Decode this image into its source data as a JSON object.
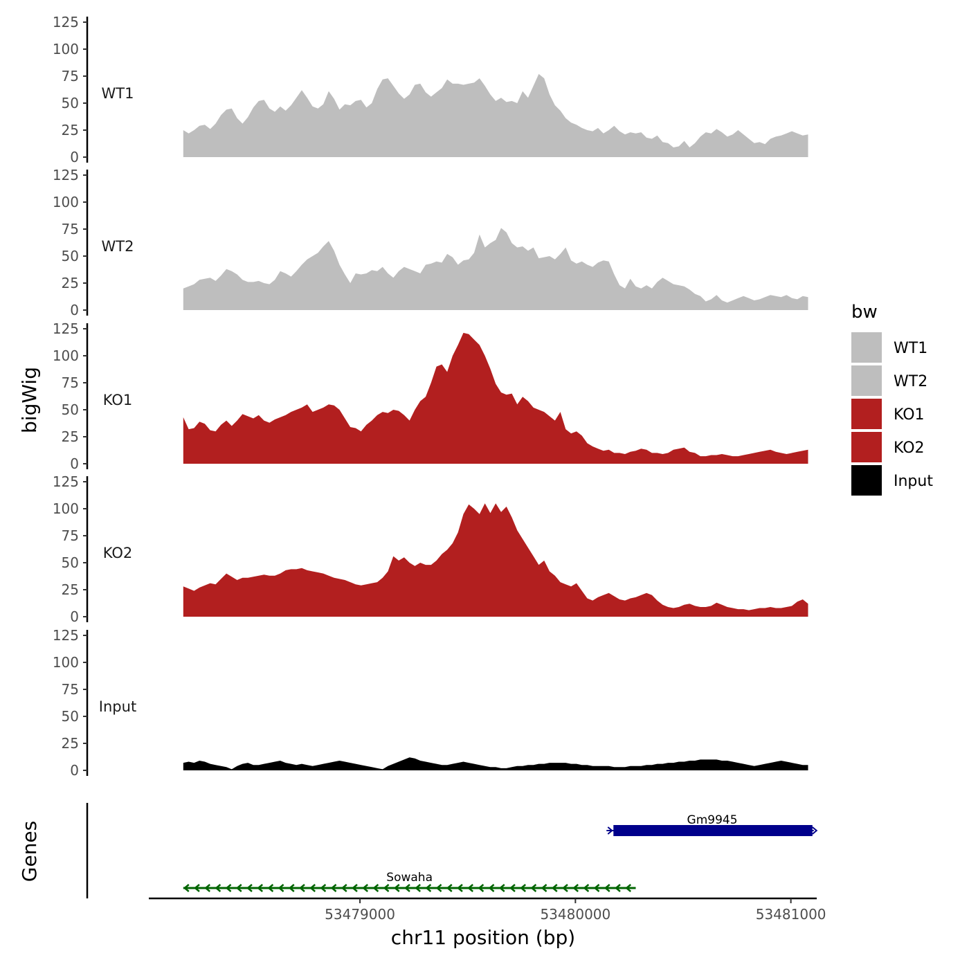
{
  "chart_data": {
    "type": "area",
    "ylabel": "bigWig",
    "xlabel": "chr11 position (bp)",
    "genes_label": "Genes",
    "ylim": [
      0,
      125
    ],
    "yticks": [
      0,
      25,
      50,
      75,
      100,
      125
    ],
    "xlim": [
      53478020,
      53481120
    ],
    "xticks": [
      53479000,
      53480000,
      53481000
    ],
    "xtick_labels": [
      "53479000",
      "53480000",
      "53481000"
    ],
    "signal_start": 53478180,
    "signal_end": 53481080,
    "legend": {
      "title": "bw",
      "items": [
        {
          "label": "WT1",
          "color": "#bebebe"
        },
        {
          "label": "WT2",
          "color": "#bebebe"
        },
        {
          "label": "KO1",
          "color": "#b21f1f"
        },
        {
          "label": "KO2",
          "color": "#b21f1f"
        },
        {
          "label": "Input",
          "color": "#000000"
        }
      ]
    },
    "tracks": [
      {
        "name": "WT1",
        "color": "#bebebe",
        "values": [
          25,
          22,
          25,
          29,
          30,
          26,
          31,
          39,
          44,
          45,
          36,
          31,
          37,
          46,
          52,
          53,
          45,
          42,
          47,
          43,
          48,
          55,
          62,
          55,
          47,
          45,
          49,
          61,
          54,
          44,
          49,
          48,
          52,
          53,
          46,
          50,
          63,
          72,
          73,
          66,
          59,
          54,
          58,
          67,
          68,
          60,
          56,
          60,
          64,
          72,
          68,
          68,
          67,
          68,
          69,
          73,
          66,
          58,
          52,
          55,
          51,
          52,
          50,
          61,
          55,
          66,
          77,
          73,
          58,
          48,
          43,
          36,
          32,
          30,
          27,
          25,
          24,
          27,
          22,
          25,
          29,
          24,
          21,
          23,
          22,
          23,
          18,
          17,
          20,
          14,
          13,
          9,
          10,
          15,
          9,
          13,
          19,
          23,
          22,
          26,
          23,
          19,
          21,
          25,
          21,
          17,
          13,
          14,
          12,
          17,
          19,
          20,
          22,
          24,
          22,
          20,
          21
        ]
      },
      {
        "name": "WT2",
        "color": "#bebebe",
        "values": [
          20,
          22,
          24,
          28,
          29,
          30,
          27,
          32,
          38,
          36,
          33,
          28,
          26,
          26,
          27,
          25,
          24,
          28,
          36,
          34,
          31,
          36,
          42,
          47,
          50,
          53,
          59,
          64,
          55,
          42,
          33,
          25,
          34,
          33,
          34,
          37,
          36,
          40,
          34,
          30,
          36,
          40,
          38,
          36,
          34,
          42,
          43,
          45,
          44,
          52,
          49,
          42,
          46,
          47,
          53,
          70,
          58,
          62,
          65,
          76,
          72,
          62,
          58,
          59,
          55,
          58,
          48,
          49,
          50,
          47,
          52,
          58,
          46,
          43,
          45,
          42,
          40,
          44,
          46,
          45,
          33,
          23,
          20,
          29,
          22,
          20,
          23,
          20,
          26,
          30,
          27,
          24,
          23,
          22,
          19,
          15,
          13,
          8,
          10,
          14,
          9,
          7,
          9,
          11,
          13,
          11,
          9,
          10,
          12,
          14,
          13,
          12,
          14,
          11,
          10,
          13,
          12
        ]
      },
      {
        "name": "KO1",
        "color": "#b21f1f",
        "values": [
          43,
          32,
          33,
          39,
          37,
          31,
          30,
          36,
          40,
          35,
          40,
          46,
          44,
          42,
          45,
          40,
          38,
          41,
          43,
          45,
          48,
          50,
          52,
          55,
          48,
          50,
          52,
          55,
          54,
          50,
          42,
          34,
          33,
          30,
          36,
          40,
          45,
          48,
          47,
          50,
          49,
          45,
          40,
          50,
          58,
          62,
          75,
          90,
          92,
          85,
          100,
          110,
          122,
          120,
          115,
          110,
          100,
          88,
          74,
          66,
          64,
          65,
          55,
          62,
          58,
          52,
          50,
          48,
          44,
          40,
          48,
          32,
          28,
          30,
          26,
          19,
          16,
          14,
          12,
          13,
          10,
          10,
          9,
          11,
          12,
          14,
          13,
          10,
          10,
          9,
          10,
          13,
          14,
          15,
          11,
          10,
          7,
          7,
          8,
          8,
          9,
          8,
          7,
          7,
          8,
          9,
          10,
          11,
          12,
          13,
          11,
          10,
          9,
          10,
          11,
          12,
          13
        ]
      },
      {
        "name": "KO2",
        "color": "#b21f1f",
        "values": [
          28,
          26,
          24,
          27,
          29,
          31,
          30,
          35,
          40,
          37,
          34,
          36,
          36,
          37,
          38,
          39,
          38,
          38,
          40,
          43,
          44,
          44,
          45,
          43,
          42,
          41,
          40,
          38,
          36,
          35,
          34,
          32,
          30,
          29,
          30,
          31,
          32,
          36,
          42,
          56,
          52,
          55,
          50,
          47,
          50,
          48,
          48,
          52,
          58,
          62,
          68,
          78,
          95,
          104,
          100,
          95,
          105,
          96,
          105,
          97,
          102,
          92,
          80,
          72,
          64,
          56,
          48,
          52,
          42,
          38,
          32,
          30,
          28,
          31,
          24,
          17,
          15,
          18,
          20,
          22,
          19,
          16,
          15,
          17,
          18,
          20,
          22,
          20,
          15,
          11,
          9,
          8,
          9,
          11,
          12,
          10,
          9,
          9,
          10,
          13,
          11,
          9,
          8,
          7,
          7,
          6,
          7,
          8,
          8,
          9,
          8,
          8,
          9,
          10,
          14,
          16,
          12
        ]
      },
      {
        "name": "Input",
        "color": "#000000",
        "values": [
          7,
          8,
          7,
          9,
          8,
          6,
          5,
          4,
          3,
          1,
          4,
          6,
          7,
          5,
          5,
          6,
          7,
          8,
          9,
          7,
          6,
          5,
          6,
          5,
          4,
          5,
          6,
          7,
          8,
          9,
          8,
          7,
          6,
          5,
          4,
          3,
          2,
          1,
          4,
          6,
          8,
          10,
          12,
          11,
          9,
          8,
          7,
          6,
          5,
          5,
          6,
          7,
          8,
          7,
          6,
          5,
          4,
          3,
          3,
          2,
          2,
          3,
          4,
          4,
          5,
          5,
          6,
          6,
          7,
          7,
          7,
          7,
          6,
          6,
          5,
          5,
          4,
          4,
          4,
          4,
          3,
          3,
          3,
          4,
          4,
          4,
          5,
          5,
          6,
          6,
          7,
          7,
          8,
          8,
          9,
          9,
          10,
          10,
          10,
          10,
          9,
          9,
          8,
          7,
          6,
          5,
          4,
          5,
          6,
          7,
          8,
          9,
          8,
          7,
          6,
          5,
          5
        ]
      }
    ],
    "genes": [
      {
        "name": "Gm9945",
        "start": 53480170,
        "end": 53481100,
        "strand": "+",
        "color": "#00008b"
      },
      {
        "name": "Sowaha",
        "start": 53478180,
        "end": 53480280,
        "strand": "-",
        "color": "#006400"
      }
    ]
  }
}
